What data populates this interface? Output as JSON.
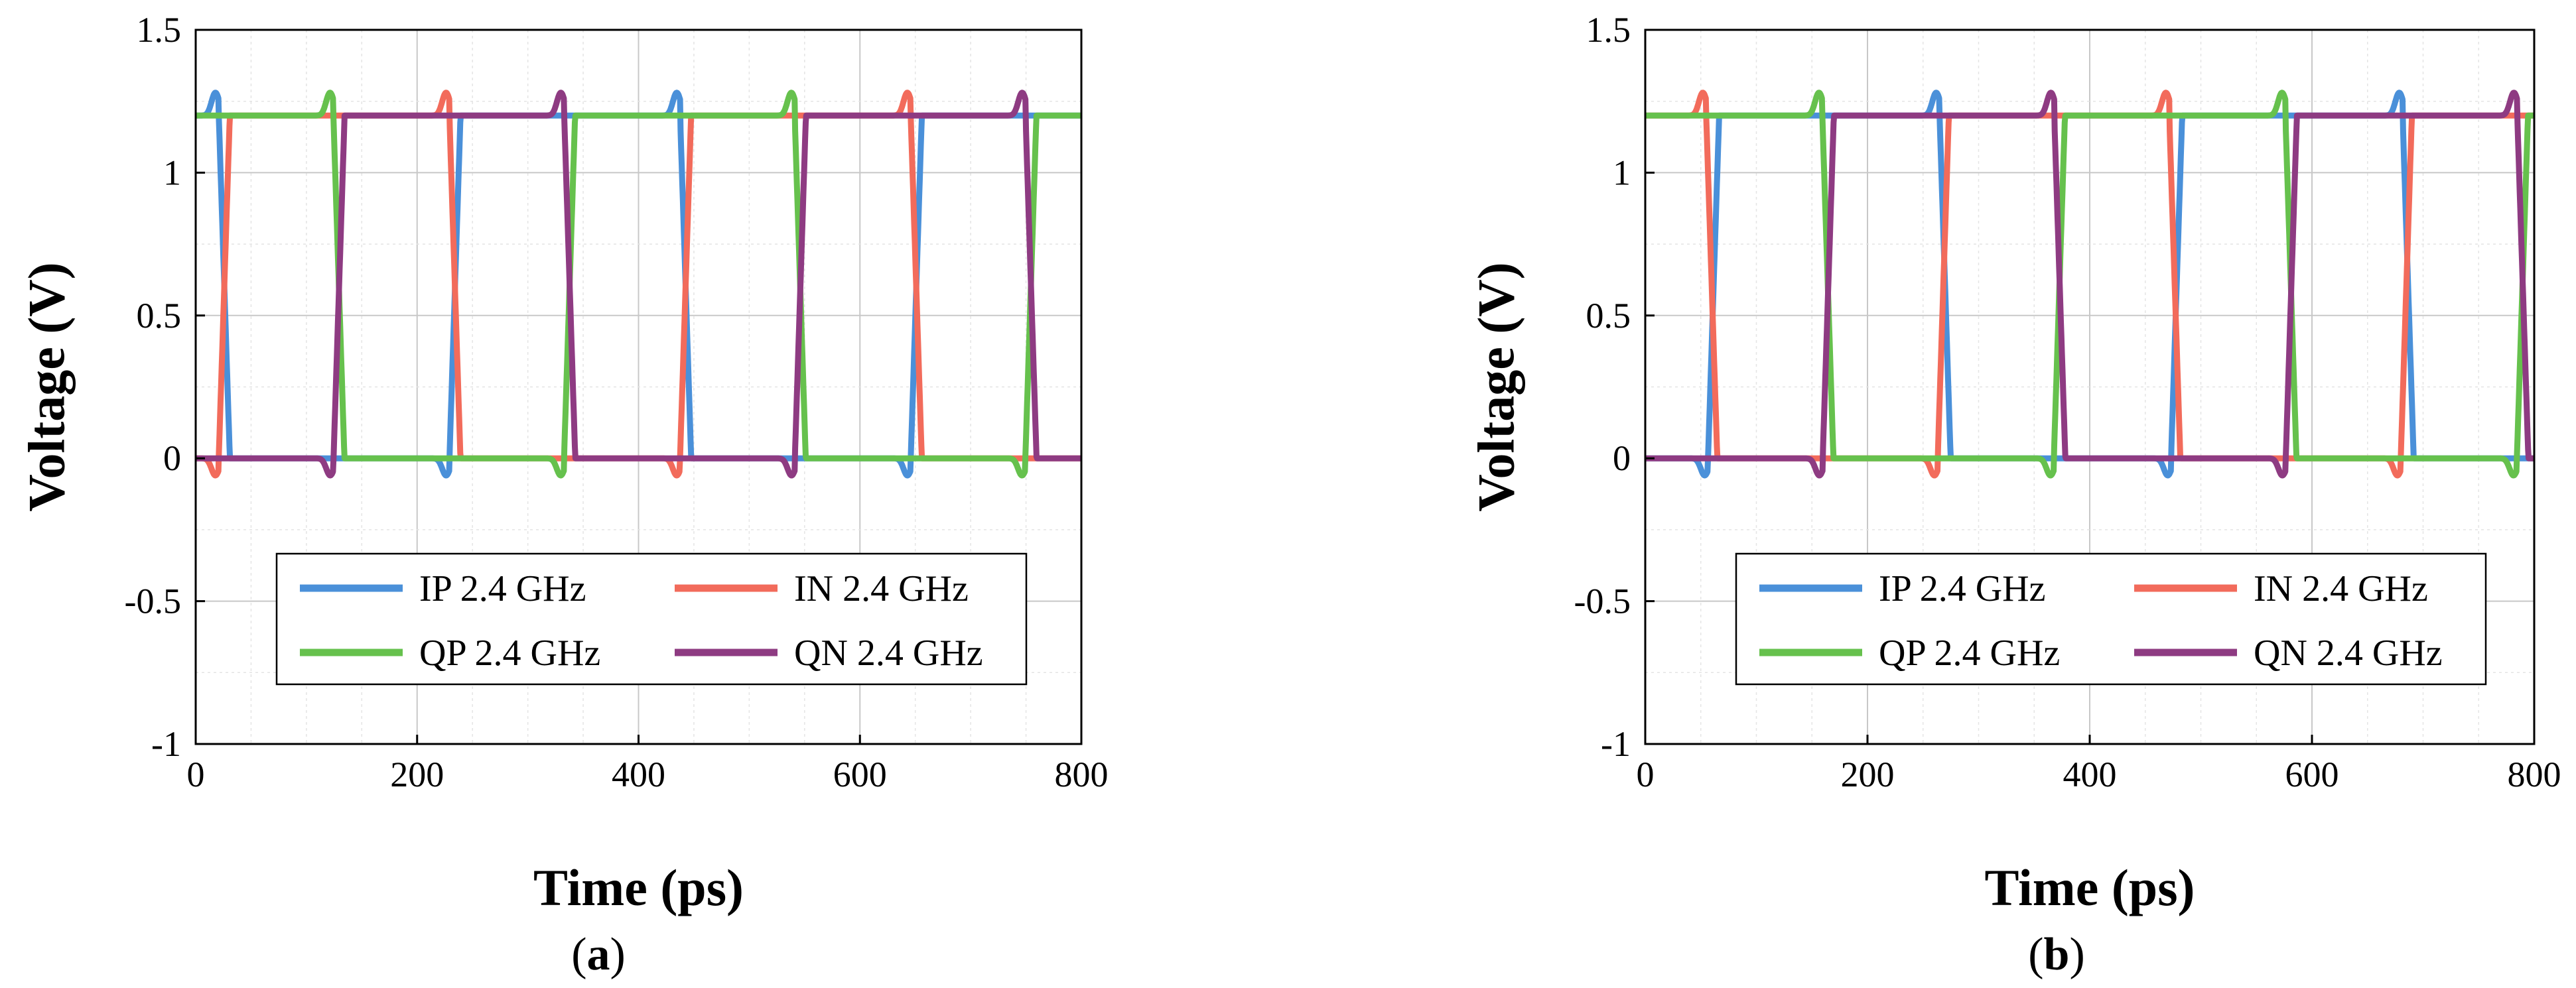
{
  "figure": {
    "panels": [
      {
        "label_open": "(",
        "label_letter": "a",
        "label_close": ")"
      },
      {
        "label_open": "(",
        "label_letter": "b",
        "label_close": ")"
      }
    ]
  },
  "chart_data": [
    {
      "type": "line",
      "panel": "a",
      "xlabel": "Time (ps)",
      "ylabel": "Voltage (V)",
      "xlim": [
        0,
        800
      ],
      "ylim": [
        -1,
        1.5
      ],
      "xticks": [
        0,
        200,
        400,
        600,
        800
      ],
      "yticks": [
        -1,
        -0.5,
        0,
        0.5,
        1,
        1.5
      ],
      "ytick_labels": [
        "-1",
        "-0.5",
        "0",
        "0.5",
        "1",
        "1.5"
      ],
      "grid": true,
      "legend_position": "lower-center",
      "signal": {
        "high": 1.2,
        "low": 0,
        "period_ps": 416.7,
        "overshoot_v": 0.08,
        "undershoot_v": -0.06
      },
      "series": [
        {
          "name": "IP 2.4 GHz",
          "color": "#4a90d9",
          "phase_ps": -182.5
        },
        {
          "name": "IN 2.4 GHz",
          "color": "#f26b5b",
          "phase_ps": 25.8
        },
        {
          "name": "QP 2.4 GHz",
          "color": "#66c14d",
          "phase_ps": -79
        },
        {
          "name": "QN 2.4 GHz",
          "color": "#8e3b82",
          "phase_ps": 129.5
        }
      ]
    },
    {
      "type": "line",
      "panel": "b",
      "xlabel": "Time (ps)",
      "ylabel": "Voltage (V)",
      "xlim": [
        0,
        800
      ],
      "ylim": [
        -1,
        1.5
      ],
      "xticks": [
        0,
        200,
        400,
        600,
        800
      ],
      "yticks": [
        -1,
        -0.5,
        0,
        0.5,
        1,
        1.5
      ],
      "ytick_labels": [
        "-1",
        "-0.5",
        "0",
        "0.5",
        "1",
        "1.5"
      ],
      "grid": true,
      "legend_position": "lower-center",
      "signal": {
        "high": 1.2,
        "low": 0,
        "period_ps": 416.7,
        "overshoot_v": 0.08,
        "undershoot_v": -0.06
      },
      "series": [
        {
          "name": "IP 2.4 GHz",
          "color": "#4a90d9",
          "phase_ps": 61.5
        },
        {
          "name": "IN 2.4 GHz",
          "color": "#f26b5b",
          "phase_ps": -148.5
        },
        {
          "name": "QP 2.4 GHz",
          "color": "#66c14d",
          "phase_ps": -44
        },
        {
          "name": "QN 2.4 GHz",
          "color": "#8e3b82",
          "phase_ps": -252
        }
      ]
    }
  ]
}
